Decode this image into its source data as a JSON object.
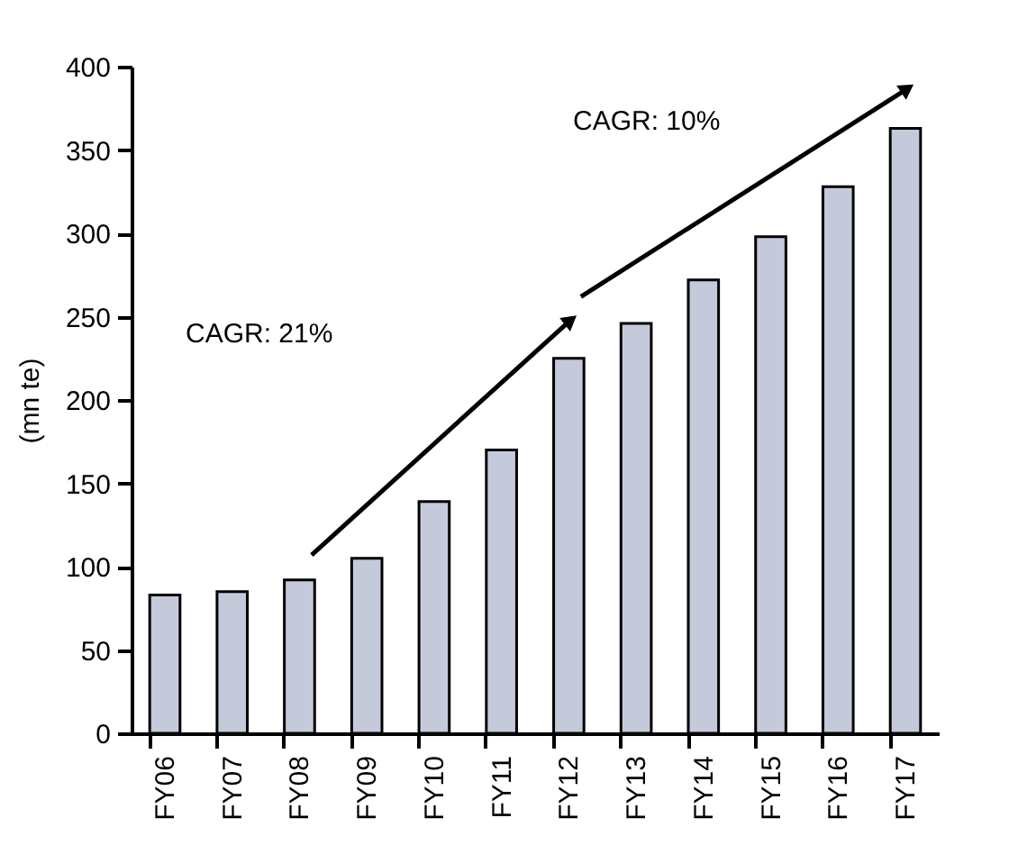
{
  "chart_data": {
    "type": "bar",
    "ylabel": "(mn te)",
    "categories": [
      "FY06",
      "FY07",
      "FY08",
      "FY09",
      "FY10",
      "FY11",
      "FY12",
      "FY13",
      "FY14",
      "FY15",
      "FY16",
      "FY17"
    ],
    "values": [
      83,
      85,
      92,
      105,
      139,
      170,
      225,
      246,
      272,
      298,
      328,
      363
    ],
    "color": "#c5cadb",
    "ylim": [
      0,
      400
    ],
    "yticks": [
      0,
      50,
      100,
      150,
      200,
      250,
      300,
      350,
      400
    ],
    "grid": false,
    "annotations": [
      "CAGR: 21%",
      "CAGR: 10%"
    ]
  }
}
